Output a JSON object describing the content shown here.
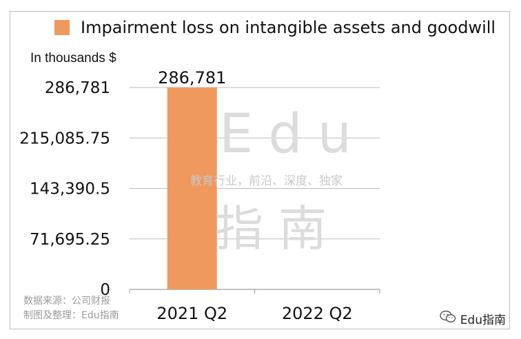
{
  "chart_data": {
    "type": "bar",
    "categories": [
      "2021 Q2",
      "2022 Q2"
    ],
    "series": [
      {
        "name": "Impairment loss on intangible assets and goodwill",
        "values": [
          286781,
          null
        ],
        "color": "#f0995e"
      }
    ],
    "ylabel": "In thousands $",
    "ylim": [
      0,
      286781
    ],
    "yticks": [
      "286,781",
      "215,085.75",
      "143,390.5",
      "71,695.25",
      "0"
    ],
    "data_labels": [
      "286,781",
      ""
    ],
    "grid": true,
    "legend_position": "top"
  },
  "legend": {
    "label": "Impairment loss on intangible assets and goodwill",
    "color": "#f0995e"
  },
  "units_label": "In thousands $",
  "watermark": {
    "edu": "Edu",
    "zhinan": "指南",
    "slogan": "教育行业，前沿、深度、独家"
  },
  "source_lines": {
    "line1": "数据来源：公司财报",
    "line2": "制图及整理：Edu指南"
  },
  "brand": {
    "icon": "wechat-icon",
    "label": "Edu指南"
  }
}
